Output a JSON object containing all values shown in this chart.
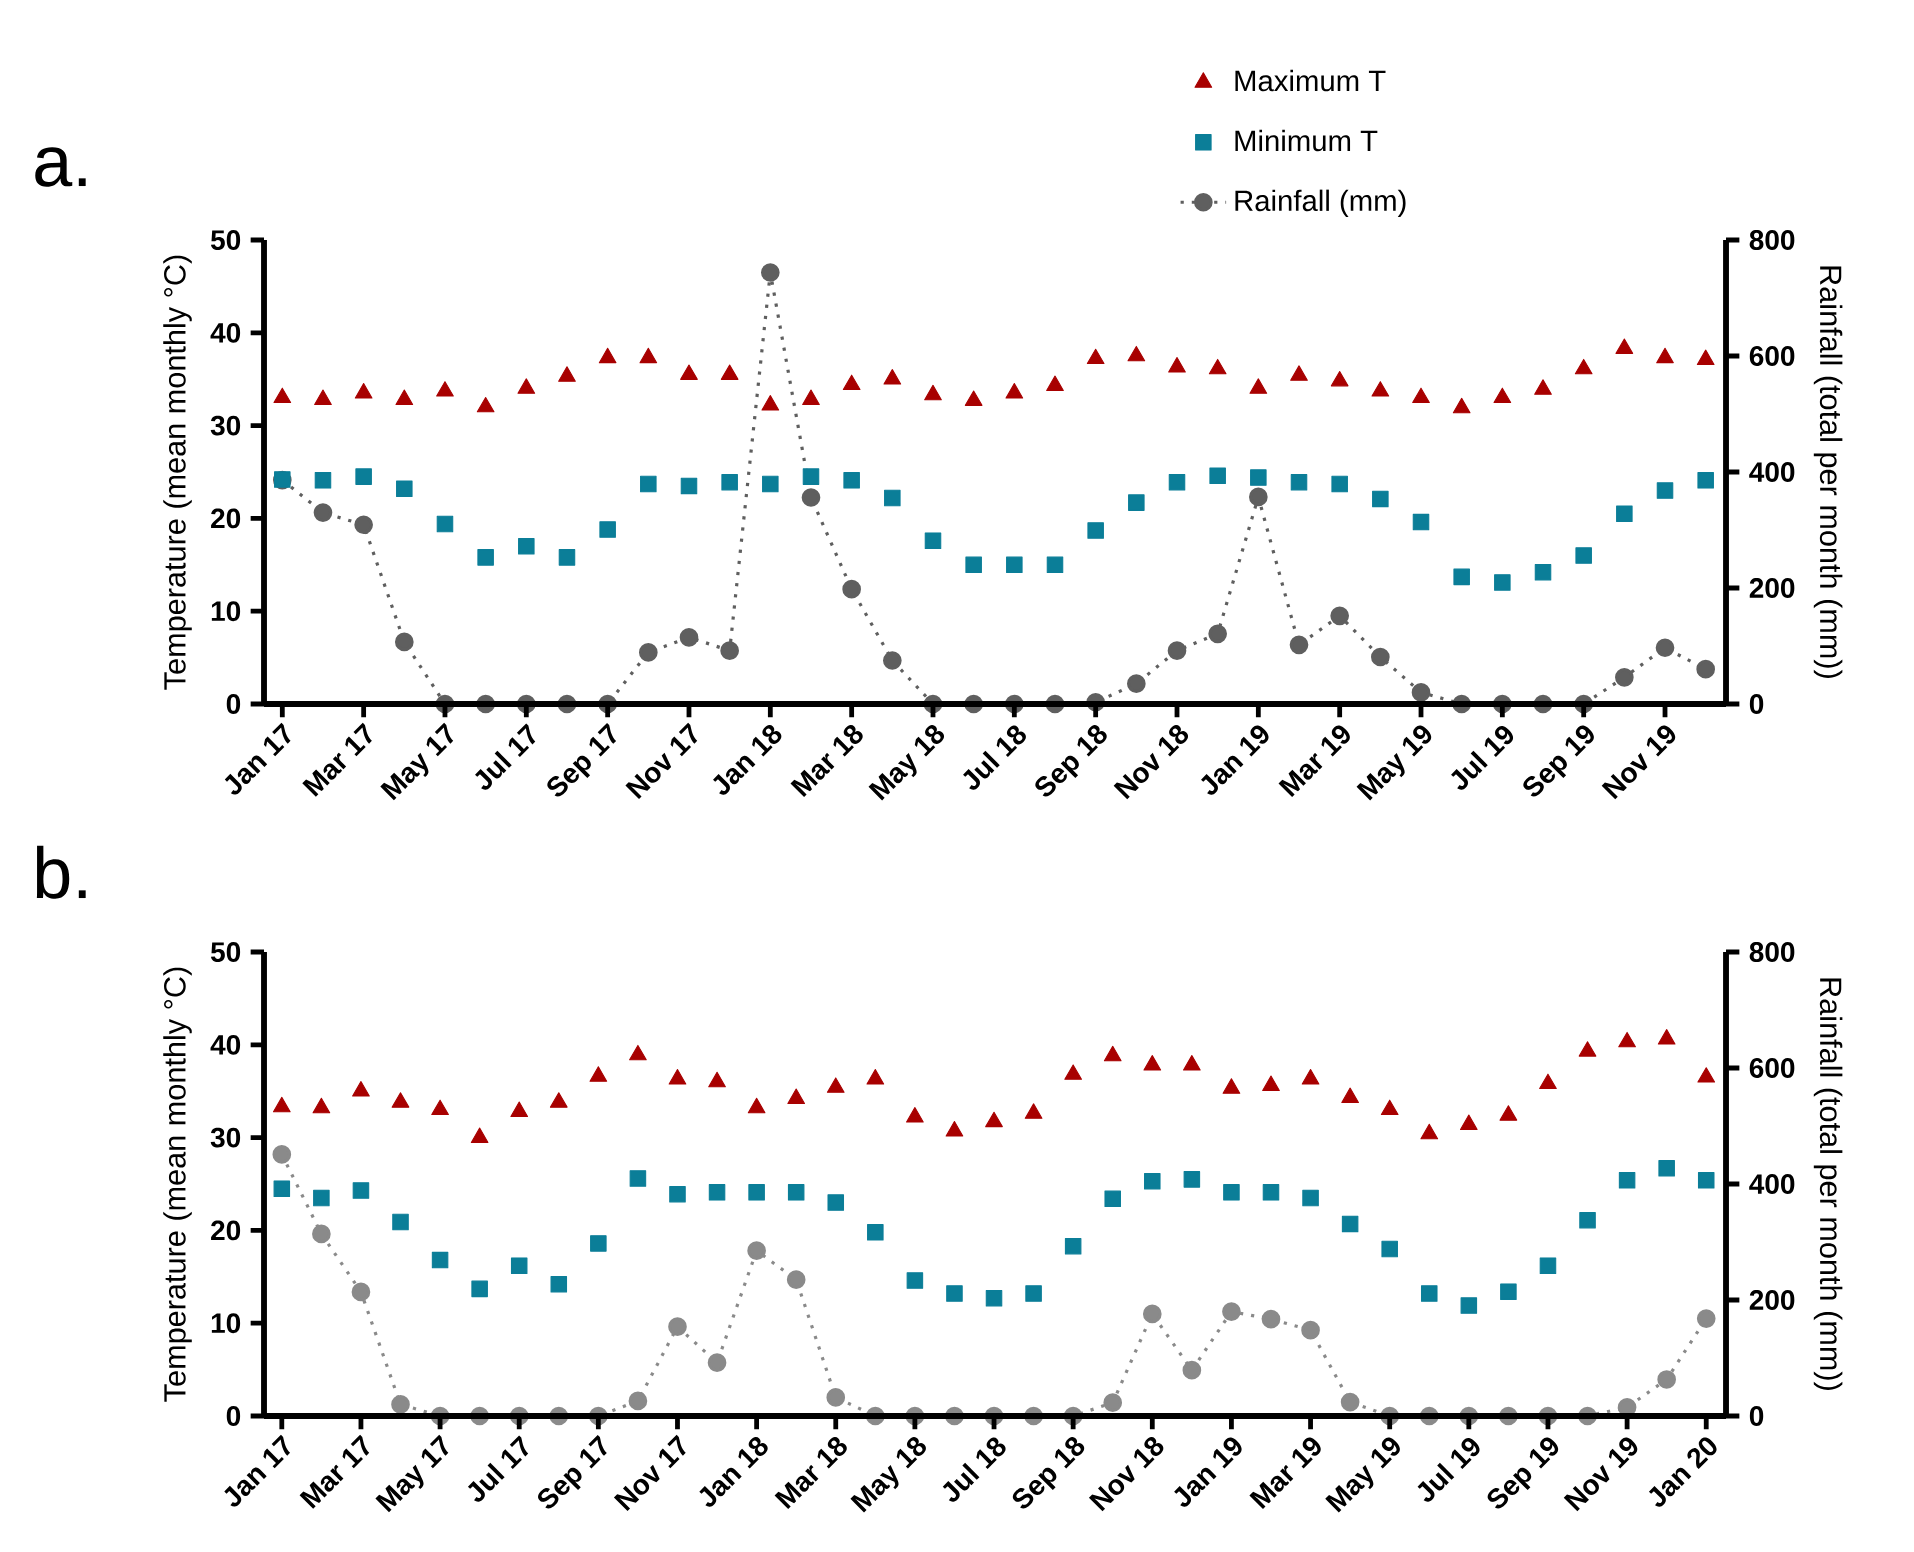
{
  "chart_data": [
    {
      "type": "scatter",
      "title": "a.",
      "ylabel": "Temperature (mean monthly °C)",
      "y2label": "Rainfall (total per month (mm))",
      "categories": [
        "Jan 17",
        null,
        "Mar 17",
        null,
        "May 17",
        null,
        "Jul 17",
        null,
        "Sep 17",
        null,
        "Nov 17",
        null,
        "Jan 18",
        null,
        "Mar 18",
        null,
        "May 18",
        null,
        "Jul 18",
        null,
        "Sep 18",
        null,
        "Nov 18",
        null,
        "Jan 19",
        null,
        "Mar 19",
        null,
        "May 19",
        null,
        "Jul 19",
        null,
        "Sep 19",
        null,
        "Nov 19",
        null
      ],
      "ylim": [
        0,
        50
      ],
      "yticks": [
        0,
        10,
        20,
        30,
        40,
        50
      ],
      "y2lim": [
        0,
        800
      ],
      "y2ticks": [
        0,
        200,
        400,
        600,
        800
      ],
      "legend": "top right",
      "series": [
        {
          "name": "Maximum T",
          "color": "#a80000",
          "marker": "triangle",
          "values": [
            33.0,
            32.8,
            33.5,
            32.8,
            33.7,
            32.0,
            34.0,
            35.3,
            37.3,
            37.3,
            35.5,
            35.5,
            32.2,
            32.8,
            34.4,
            35.0,
            33.3,
            32.7,
            33.5,
            34.3,
            37.2,
            37.5,
            36.3,
            36.1,
            34.0,
            35.4,
            34.8,
            33.7,
            33.0,
            31.9,
            33.0,
            33.9,
            36.1,
            38.3,
            37.3,
            37.1
          ]
        },
        {
          "name": "Minimum T",
          "color": "#0b7e98",
          "marker": "square",
          "values": [
            24.2,
            24.1,
            24.5,
            23.2,
            19.4,
            15.8,
            17.0,
            15.8,
            18.8,
            23.7,
            23.5,
            23.9,
            23.7,
            24.5,
            24.1,
            22.2,
            17.6,
            15.0,
            15.0,
            15.0,
            18.7,
            21.7,
            23.9,
            24.6,
            24.4,
            23.9,
            23.7,
            22.1,
            19.6,
            13.7,
            13.1,
            14.2,
            16.0,
            20.5,
            23.0,
            24.1
          ]
        },
        {
          "name": "Rainfall (mm)",
          "type": "line",
          "axis": "y2",
          "color": "#5f5f5f",
          "marker": "circle",
          "line_style": "dotted",
          "values": [
            386,
            330,
            309,
            107,
            0,
            0,
            0,
            0,
            0,
            89,
            115,
            92,
            744,
            356,
            198,
            75,
            0,
            0,
            0,
            0,
            3,
            35,
            92,
            121,
            357,
            102,
            152,
            81,
            20,
            0,
            0,
            0,
            0,
            46,
            97,
            60
          ]
        }
      ]
    },
    {
      "type": "scatter",
      "title": "b.",
      "ylabel": "Temperature (mean monthly °C)",
      "y2label": "Rainfall (total per month (mm))",
      "categories": [
        "Jan 17",
        null,
        "Mar 17",
        null,
        "May 17",
        null,
        "Jul 17",
        null,
        "Sep 17",
        null,
        "Nov 17",
        null,
        "Jan 18",
        null,
        "Mar 18",
        null,
        "May 18",
        null,
        "Jul 18",
        null,
        "Sep 18",
        null,
        "Nov 18",
        null,
        "Jan 19",
        null,
        "Mar 19",
        null,
        "May 19",
        null,
        "Jul 19",
        null,
        "Sep 19",
        null,
        "Nov 19",
        null,
        "Jan 20"
      ],
      "ylim": [
        0,
        50
      ],
      "yticks": [
        0,
        10,
        20,
        30,
        40,
        50
      ],
      "y2lim": [
        0,
        800
      ],
      "y2ticks": [
        0,
        200,
        400,
        600,
        800
      ],
      "series": [
        {
          "color": "#a80000",
          "marker": "triangle",
          "values": [
            33.3,
            33.2,
            35.0,
            33.8,
            33.0,
            30.0,
            32.8,
            33.8,
            36.6,
            38.9,
            36.3,
            36.0,
            33.2,
            34.2,
            35.4,
            36.3,
            32.2,
            30.7,
            31.7,
            32.6,
            36.8,
            38.8,
            37.8,
            37.8,
            35.3,
            35.6,
            36.3,
            34.3,
            33.0,
            30.4,
            31.4,
            32.4,
            35.8,
            39.3,
            40.3,
            40.6,
            36.5
          ]
        },
        {
          "color": "#0b7e98",
          "marker": "square",
          "values": [
            24.5,
            23.5,
            24.3,
            20.9,
            16.8,
            13.7,
            16.2,
            14.2,
            18.6,
            25.6,
            23.9,
            24.1,
            24.1,
            24.1,
            23.0,
            19.8,
            14.6,
            13.2,
            12.7,
            13.2,
            18.3,
            23.4,
            25.3,
            25.5,
            24.1,
            24.1,
            23.5,
            20.7,
            18.0,
            13.2,
            11.9,
            13.4,
            16.2,
            21.1,
            25.4,
            26.7,
            25.4
          ]
        },
        {
          "type": "line",
          "axis": "y2",
          "color": "#8a8a8a",
          "marker": "circle",
          "line_style": "dotted",
          "values": [
            451,
            314,
            214,
            20,
            0,
            0,
            0,
            0,
            0,
            26,
            154,
            92,
            285,
            235,
            32,
            0,
            0,
            0,
            0,
            0,
            0,
            23,
            176,
            79,
            180,
            167,
            148,
            24,
            0,
            0,
            0,
            0,
            0,
            0,
            15,
            63,
            168
          ]
        }
      ]
    }
  ]
}
